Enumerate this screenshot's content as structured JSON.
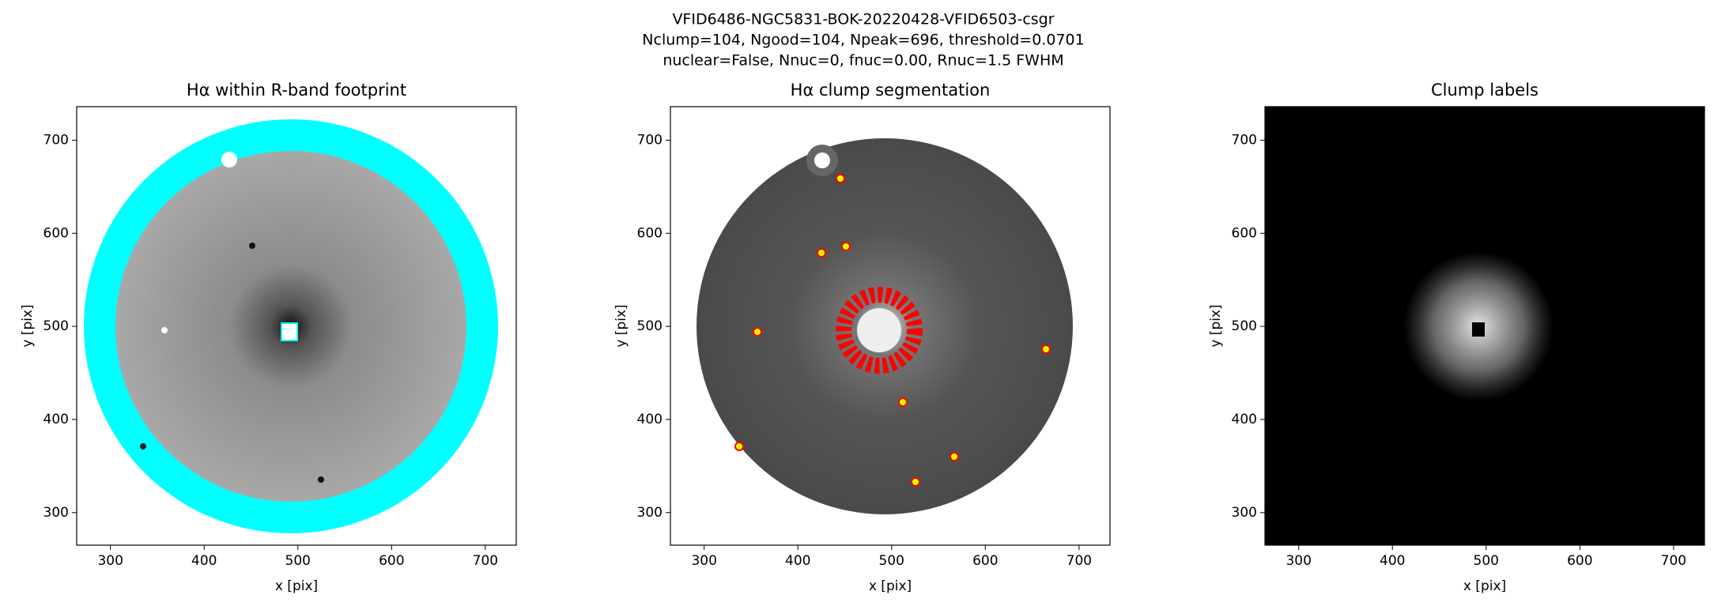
{
  "suptitle": [
    "VFID6486-NGC5831-BOK-20220428-VFID6503-csgr",
    "Nclump=104, Ngood=104, Npeak=696, threshold=0.0701",
    "nuclear=False, Nnuc=0, fnuc=0.00, Rnuc=1.5 FWHM"
  ],
  "chart_data": [
    {
      "type": "image",
      "title": "Hα within R-band footprint",
      "xlabel": "x [pix]",
      "ylabel": "y [pix]",
      "xlim": [
        264,
        733
      ],
      "ylim": [
        265,
        736
      ],
      "xticks": [
        300,
        400,
        500,
        600,
        700
      ],
      "yticks": [
        300,
        400,
        500,
        600,
        700
      ]
    },
    {
      "type": "image",
      "title": "Hα clump segmentation",
      "xlabel": "x [pix]",
      "ylabel": "y [pix]",
      "xlim": [
        264,
        733
      ],
      "ylim": [
        265,
        736
      ],
      "xticks": [
        300,
        400,
        500,
        600,
        700
      ],
      "yticks": [
        300,
        400,
        500,
        600,
        700
      ]
    },
    {
      "type": "image",
      "title": "Clump labels",
      "xlabel": "x [pix]",
      "ylabel": "y [pix]",
      "xlim": [
        264,
        733
      ],
      "ylim": [
        265,
        736
      ],
      "xticks": [
        300,
        400,
        500,
        600,
        700
      ],
      "yticks": [
        300,
        400,
        500,
        600,
        700
      ]
    }
  ]
}
